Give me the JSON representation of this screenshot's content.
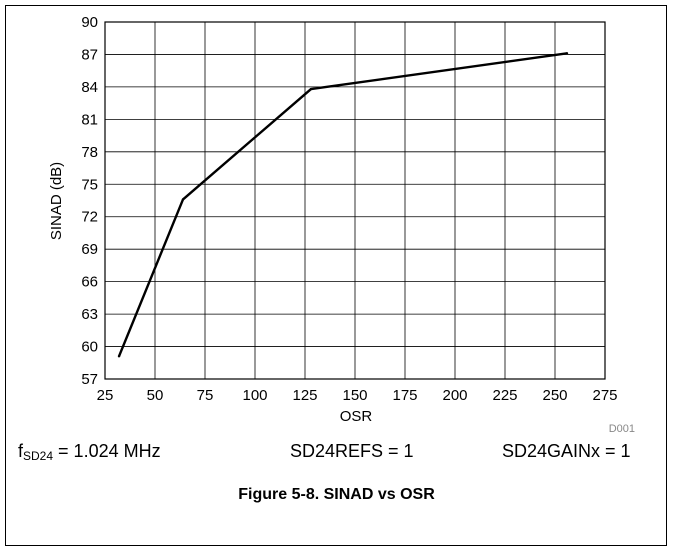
{
  "chart_data": {
    "type": "line",
    "xlabel": "OSR",
    "ylabel": "SINAD (dB)",
    "xlim": [
      25,
      275
    ],
    "ylim": [
      57,
      90
    ],
    "x_ticks": [
      25,
      50,
      75,
      100,
      125,
      150,
      175,
      200,
      225,
      250,
      275
    ],
    "y_ticks": [
      57,
      60,
      63,
      66,
      69,
      72,
      75,
      78,
      81,
      84,
      87,
      90
    ],
    "grid": true,
    "series": [
      {
        "x": [
          32,
          64,
          128,
          256
        ],
        "values": [
          59.1,
          73.6,
          83.8,
          87.1
        ],
        "color": "#000000"
      }
    ],
    "annotation": "D001"
  },
  "conditions": {
    "f_main": "f",
    "f_sub": "SD24",
    "f_rest": " = 1.024 MHz",
    "refs": "SD24REFS = 1",
    "gain": "SD24GAINx = 1"
  },
  "caption": "Figure 5-8. SINAD vs OSR"
}
